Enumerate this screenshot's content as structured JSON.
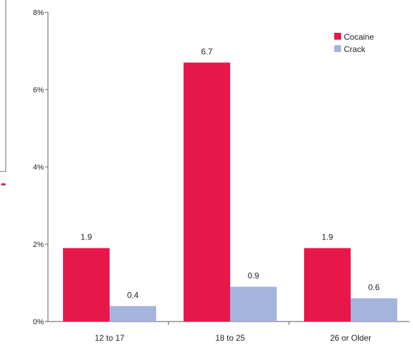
{
  "chart_data": {
    "type": "bar",
    "categories": [
      "12 to 17",
      "18 to 25",
      "26 or Older"
    ],
    "series": [
      {
        "name": "Cocaine",
        "values": [
          1.9,
          6.7,
          1.9
        ],
        "color": "#e8174a"
      },
      {
        "name": "Crack",
        "values": [
          0.4,
          0.9,
          0.6
        ],
        "color": "#a4b4dc"
      }
    ],
    "data_labels": [
      [
        "1.9",
        "0.4"
      ],
      [
        "6.7",
        "0.9"
      ],
      [
        "1.9",
        "0.6"
      ]
    ],
    "y_ticks": [
      "0%",
      "2%",
      "4%",
      "6%",
      "8%"
    ],
    "y_tick_values": [
      0,
      2,
      4,
      6,
      8
    ],
    "ylim": [
      0,
      8
    ],
    "legend_position": "top-right",
    "grid": false
  }
}
